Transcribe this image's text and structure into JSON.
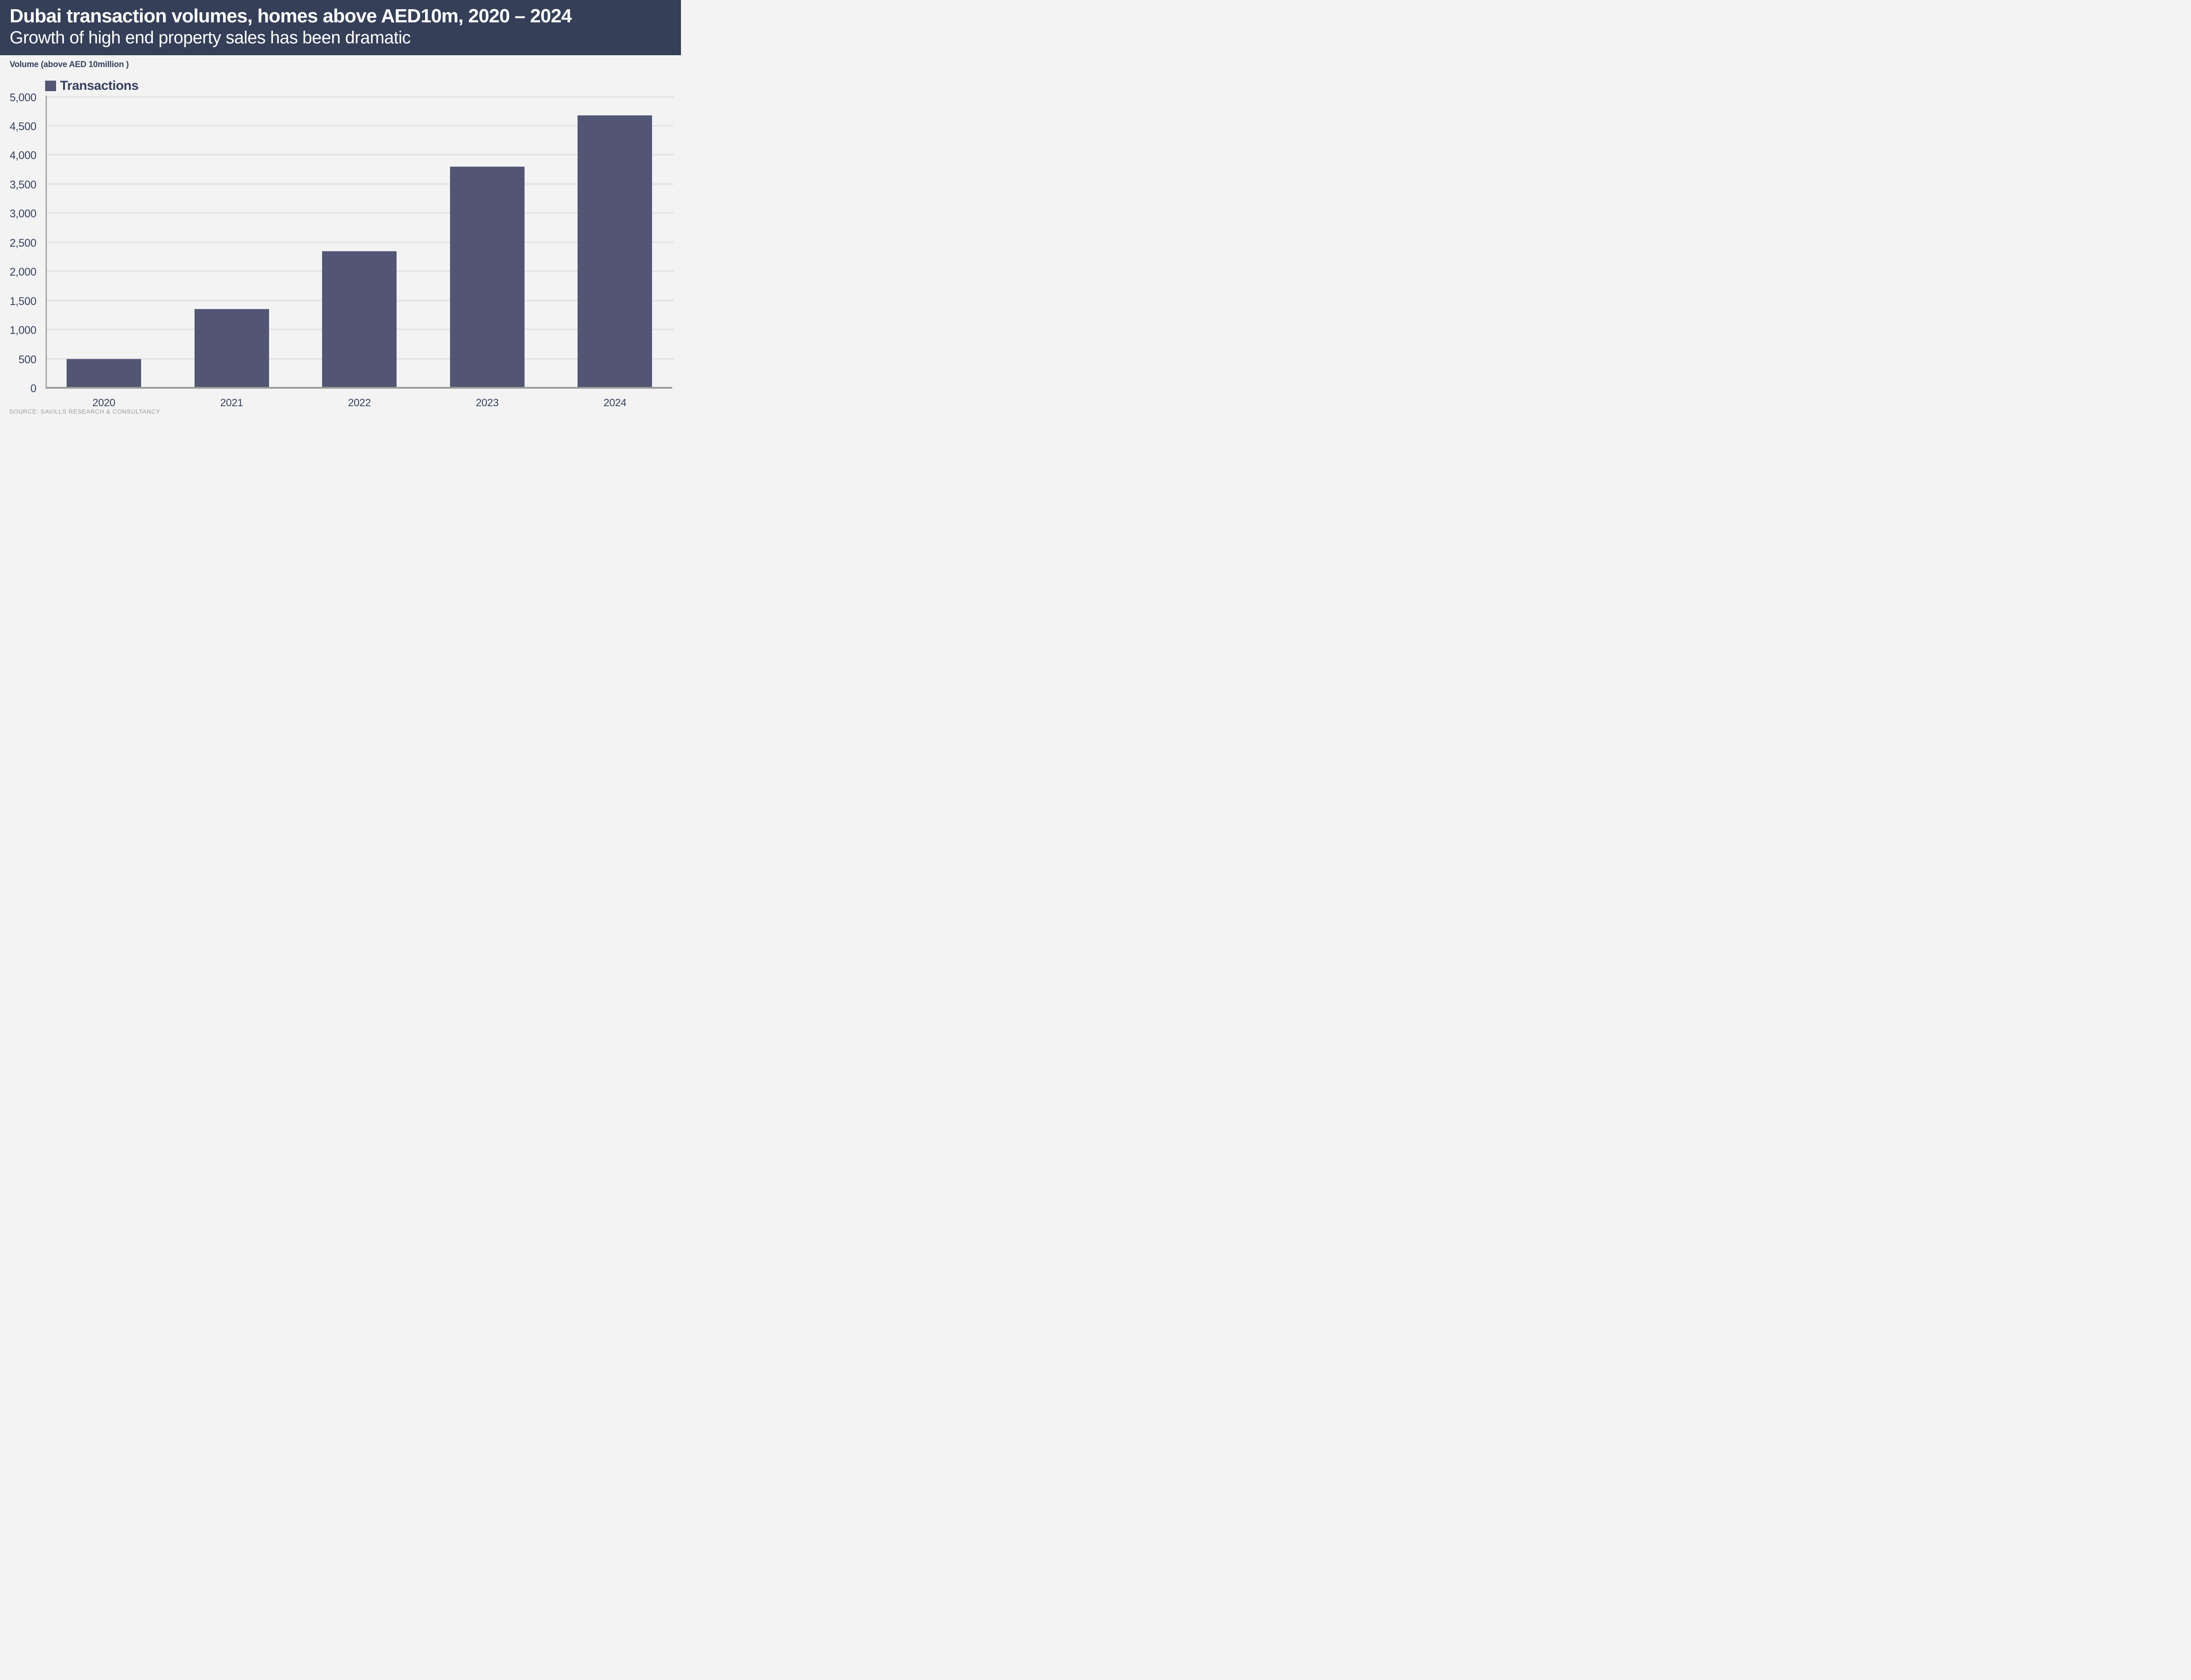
{
  "header": {
    "title": "Dubai transaction volumes, homes above AED10m, 2020 – 2024",
    "subtitle": "Growth of high end property sales has been dramatic"
  },
  "axis_note": "Volume (above AED 10million )",
  "legend": {
    "label": "Transactions"
  },
  "source": "SOURCE: SAVILLS RESEARCH & CONSULTANCY",
  "colors": {
    "header_bg": "#353F58",
    "header_text": "#FFFFFF",
    "chart_bg": "#F3F3F4",
    "bar_fill": "#525674",
    "text_navy": "#36415C",
    "gridline": "#E5E5E8",
    "axis_line": "#9B9B9B",
    "source_text": "#9A9A9A"
  },
  "chart_data": {
    "type": "bar",
    "categories": [
      "2020",
      "2021",
      "2022",
      "2023",
      "2024"
    ],
    "series": [
      {
        "name": "Transactions",
        "values": [
          480,
          1340,
          2335,
          3785,
          4665
        ]
      }
    ],
    "title": "Dubai transaction volumes, homes above AED10m, 2020 – 2024",
    "subtitle": "Growth of high end property sales has been dramatic",
    "xlabel": "",
    "ylabel": "Volume (above AED 10million )",
    "ylim": [
      0,
      5000
    ],
    "ytick_step": 500,
    "ytick_labels": [
      "0",
      "500",
      "1,000",
      "1,500",
      "2,000",
      "2,500",
      "3,000",
      "3,500",
      "4,000",
      "4,500",
      "5,000"
    ],
    "grid": "horizontal",
    "legend_position": "top-left",
    "source": "SOURCE: SAVILLS RESEARCH & CONSULTANCY"
  }
}
